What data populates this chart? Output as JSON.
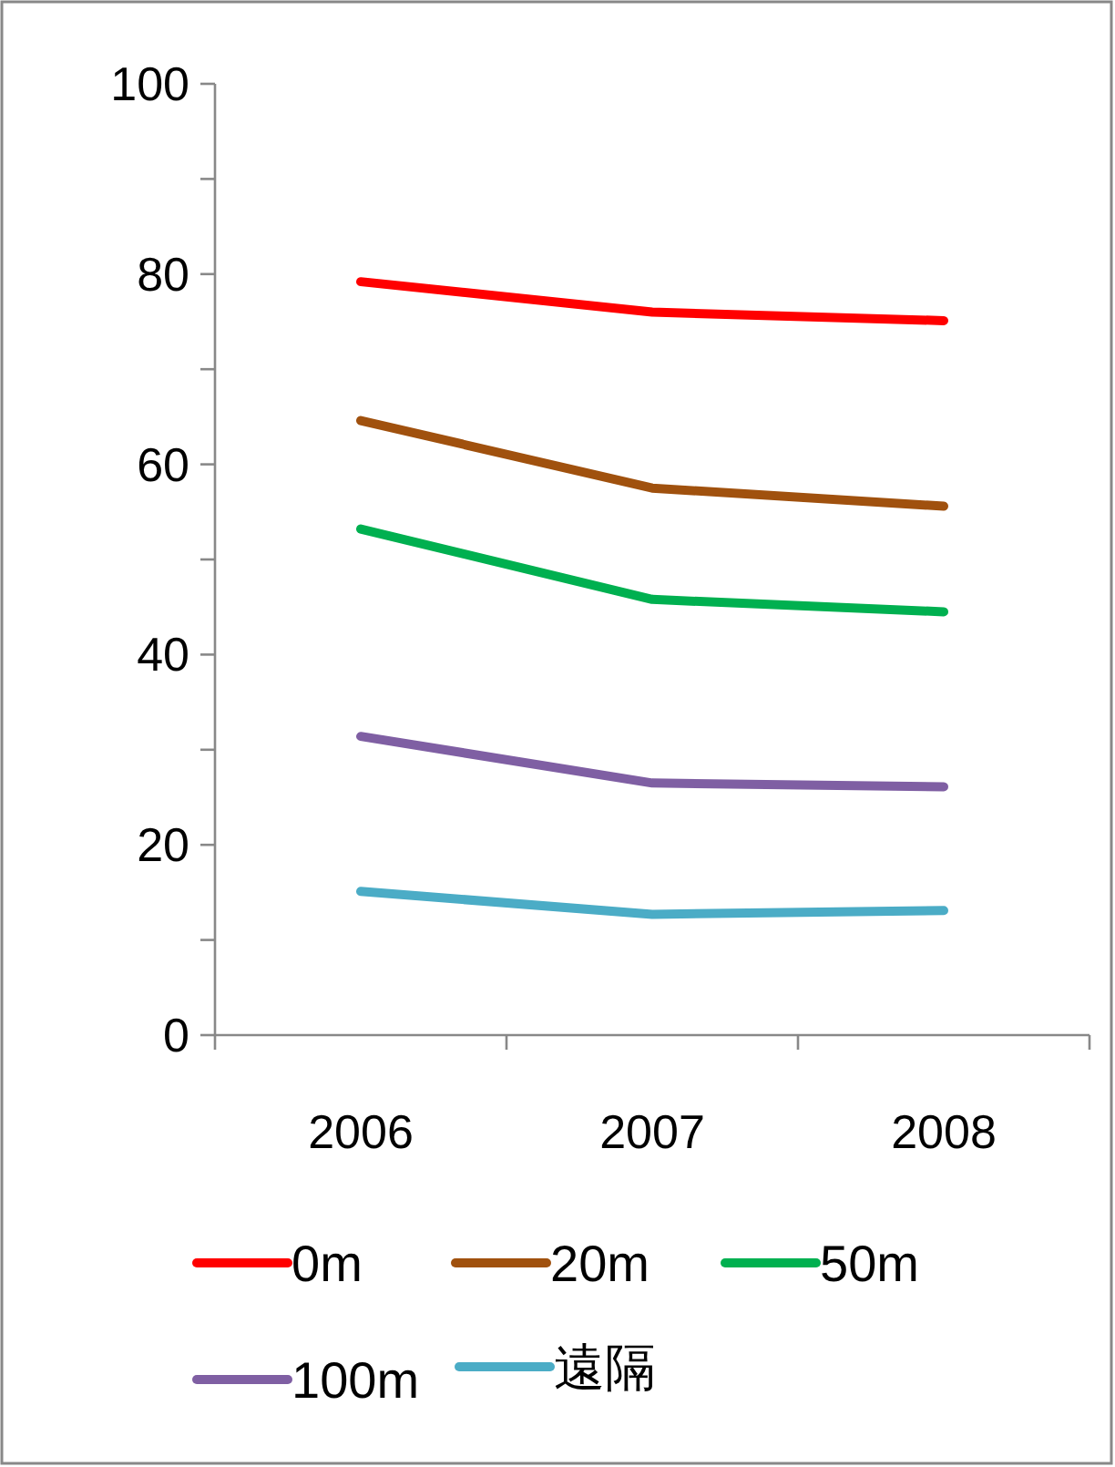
{
  "chart_data": {
    "type": "line",
    "categories": [
      "2006",
      "2007",
      "2008"
    ],
    "series": [
      {
        "name": "0m",
        "color": "#ff0000",
        "values": [
          79.2,
          76.0,
          75.1
        ]
      },
      {
        "name": "20m",
        "color": "#a0510e",
        "values": [
          64.6,
          57.5,
          55.6
        ]
      },
      {
        "name": "50m",
        "color": "#00b050",
        "values": [
          53.2,
          45.8,
          44.5
        ]
      },
      {
        "name": "100m",
        "color": "#7f5fa3",
        "values": [
          31.4,
          26.5,
          26.1
        ]
      },
      {
        "name": "遠隔",
        "color": "#4bacc6",
        "values": [
          15.1,
          12.7,
          13.1
        ]
      }
    ],
    "ylim": [
      0,
      100
    ],
    "yticks": [
      0,
      {
        "value": 10,
        "label": null
      },
      20,
      {
        "value": 30,
        "label": null
      },
      40,
      {
        "value": 50,
        "label": null
      },
      60,
      {
        "value": 70,
        "label": null
      },
      80,
      {
        "value": 90,
        "label": null
      },
      100
    ],
    "grid": false,
    "legend": "bottom",
    "marker": "none",
    "line_style": "solid"
  }
}
